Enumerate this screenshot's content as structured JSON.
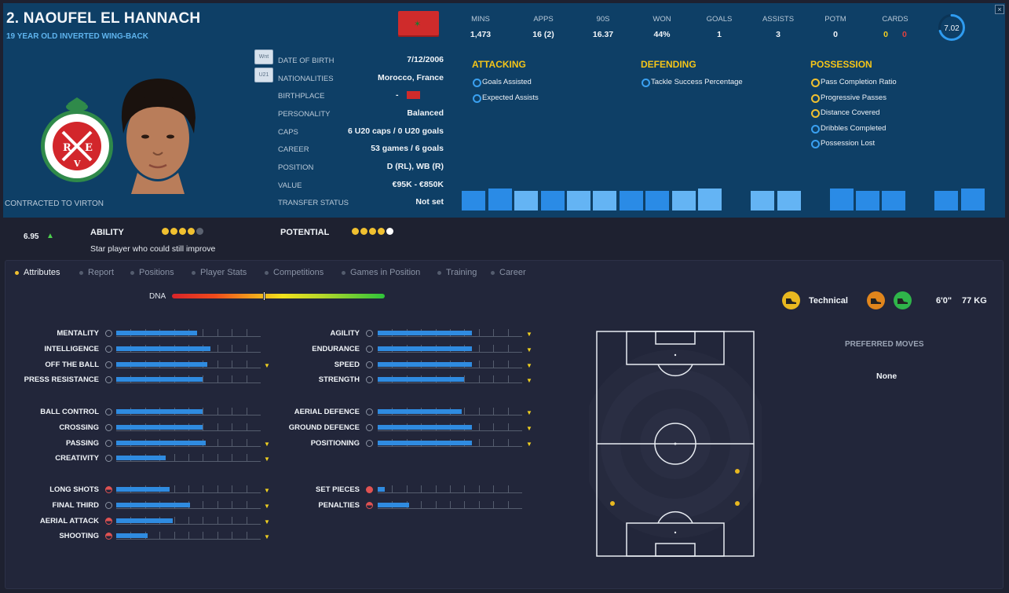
{
  "header": {
    "name": "2. NAOUFEL EL HANNACH",
    "subtitle": "19 YEAR OLD INVERTED WING-BACK",
    "contract": "CONTRACTED TO VIRTON",
    "side_buttons": [
      "Wnt",
      "U21"
    ],
    "close_glyph": "×",
    "flag_color": "#cf2b2b"
  },
  "bio": [
    {
      "label": "DATE OF BIRTH",
      "value": "7/12/2006"
    },
    {
      "label": "NATIONALITIES",
      "value": "Morocco, France"
    },
    {
      "label": "BIRTHPLACE",
      "value": "-"
    },
    {
      "label": "PERSONALITY",
      "value": "Balanced"
    },
    {
      "label": "CAPS",
      "value": "6 U20 caps / 0 U20 goals"
    },
    {
      "label": "CAREER",
      "value": "53 games /    6  goals"
    },
    {
      "label": "POSITION",
      "value": "D (RL), WB (R)"
    },
    {
      "label": "VALUE",
      "value": "€95K - €850K"
    },
    {
      "label": "TRANSFER STATUS",
      "value": "Not set"
    }
  ],
  "stats": [
    {
      "label": "MINS",
      "value": "1,473"
    },
    {
      "label": "APPS",
      "value": "16 (2)"
    },
    {
      "label": "90S",
      "value": "16.37"
    },
    {
      "label": "WON",
      "value": "44%"
    },
    {
      "label": "GOALS",
      "value": "1"
    },
    {
      "label": "ASSISTS",
      "value": "3"
    },
    {
      "label": "POTM",
      "value": "0"
    },
    {
      "label": "CARDS",
      "yellow": "0",
      "red": "0"
    }
  ],
  "rating": "7.02",
  "sections": {
    "attacking": {
      "title": "ATTACKING",
      "items": [
        "Goals Assisted",
        "Expected Assists"
      ]
    },
    "defending": {
      "title": "DEFENDING",
      "items": [
        "Tackle Success Percentage"
      ]
    },
    "possession": {
      "title": "POSSESSION",
      "items": [
        "Pass Completion Ratio",
        "Progressive Passes",
        "Distance Covered",
        "Dribbles Completed",
        "Possession Lost"
      ]
    }
  },
  "ability": {
    "rating": "6.95",
    "label": "ABILITY",
    "description": "Star player who could still improve",
    "stars": 4,
    "potential_label": "POTENTIAL",
    "potential_stars": 5
  },
  "tabs": [
    "Attributes",
    "Report",
    "Positions",
    "Player Stats",
    "Competitions",
    "Games in Position",
    "Training",
    "Career"
  ],
  "dna_label": "DNA",
  "dna_level": 0.43,
  "attributes_left": [
    [
      {
        "name": "MENTALITY",
        "v": 0.56
      },
      {
        "name": "INTELLIGENCE",
        "v": 0.65
      },
      {
        "name": "OFF THE BALL",
        "v": 0.63,
        "arrow": true
      },
      {
        "name": "PRESS RESISTANCE",
        "v": 0.6
      }
    ],
    [
      {
        "name": "BALL CONTROL",
        "v": 0.6
      },
      {
        "name": "CROSSING",
        "v": 0.6
      },
      {
        "name": "PASSING",
        "v": 0.62,
        "arrow": true
      },
      {
        "name": "CREATIVITY",
        "v": 0.34,
        "arrow": true
      }
    ],
    [
      {
        "name": "LONG SHOTS",
        "v": 0.37,
        "arrow": true,
        "icon": "half"
      },
      {
        "name": "FINAL THIRD",
        "v": 0.51,
        "arrow": true
      },
      {
        "name": "AERIAL ATTACK",
        "v": 0.39,
        "arrow": true,
        "icon": "half"
      },
      {
        "name": "SHOOTING",
        "v": 0.22,
        "arrow": true,
        "icon": "half"
      }
    ]
  ],
  "attributes_right": [
    [
      {
        "name": "AGILITY",
        "v": 0.65,
        "arrow": true
      },
      {
        "name": "ENDURANCE",
        "v": 0.65,
        "arrow": true
      },
      {
        "name": "SPEED",
        "v": 0.65,
        "arrow": true
      },
      {
        "name": "STRENGTH",
        "v": 0.6,
        "arrow": true
      }
    ],
    [
      {
        "name": "AERIAL DEFENCE",
        "v": 0.58,
        "arrow": true
      },
      {
        "name": "GROUND DEFENCE",
        "v": 0.65,
        "arrow": true
      },
      {
        "name": "POSITIONING",
        "v": 0.65,
        "arrow": true
      }
    ],
    [
      {
        "name": "SET PIECES",
        "v": 0.05,
        "icon": "red"
      },
      {
        "name": "PENALTIES",
        "v": 0.22,
        "icon": "half"
      }
    ]
  ],
  "style_label": "Technical",
  "height": "6'0\"",
  "weight": "77 KG",
  "preferred_moves_title": "PREFERRED MOVES",
  "preferred_moves_value": "None"
}
